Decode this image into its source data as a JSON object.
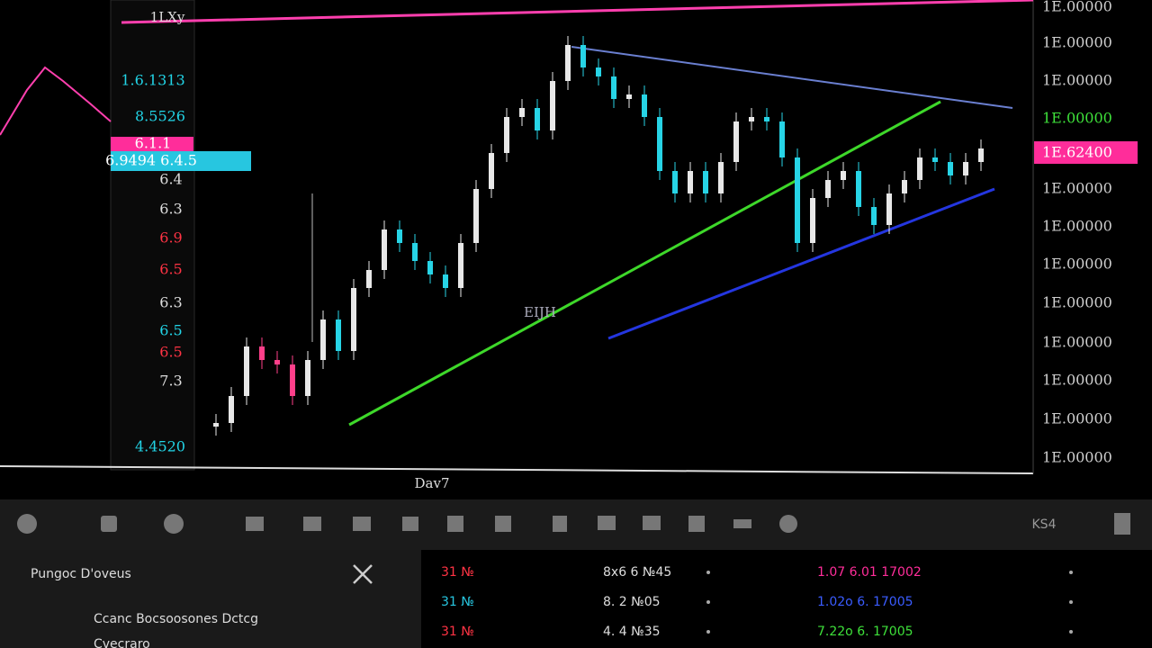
{
  "top_label": "1LXy",
  "left_panel": {
    "labels": [
      "1.6.1313",
      "8.5526",
      "",
      "6.4",
      "6.3",
      "6.9",
      "6.5",
      "6.3",
      "6.5",
      "6.5",
      "7.3"
    ],
    "box_magenta": "6.1.1",
    "box_cyan": "6.9494 6.4.5",
    "box_cyan_right": "6.4.5",
    "bottom": "4.4520"
  },
  "price_axis": {
    "labels": [
      "1E.00000",
      "1E.00000",
      "1E.00000",
      "1E.00000",
      "1E.00000",
      "1E.00000",
      "1E.00000",
      "1E.00000",
      "1E.00000",
      "1E.00000",
      "1E.00000"
    ],
    "green_label": "1E.00000",
    "magenta_label": "1E.62400"
  },
  "x_axis_label": "Dav7",
  "pattern_label": "EIJH",
  "price_chart": {
    "closes": [
      11,
      17,
      28,
      25,
      24,
      17,
      25,
      34,
      27,
      41,
      45,
      54,
      51,
      47,
      44,
      41,
      51,
      63,
      71,
      79,
      81,
      76,
      87,
      95,
      90,
      88,
      83,
      84,
      79,
      67,
      62,
      67,
      62,
      69,
      78,
      79,
      78,
      70,
      51,
      61,
      65,
      67,
      59,
      55,
      62,
      65,
      70,
      69,
      66,
      69,
      72
    ]
  },
  "toolbar": {
    "right_label": "KS4"
  },
  "bottom_left": {
    "title": "Pungoc D'oveus",
    "item1": "Ccanc Bocsoosones Dctcg",
    "item2": "Cvecraro"
  },
  "bottom_right": {
    "rows": [
      [
        "31 №",
        "8x6 6 №45",
        "1.07 6.01 17002"
      ],
      [
        "31 №",
        "8. 2 №05",
        "1.02o 6. 17005"
      ],
      [
        "31 №",
        "4. 4 №35",
        "7.22o 6. 17005"
      ]
    ]
  }
}
